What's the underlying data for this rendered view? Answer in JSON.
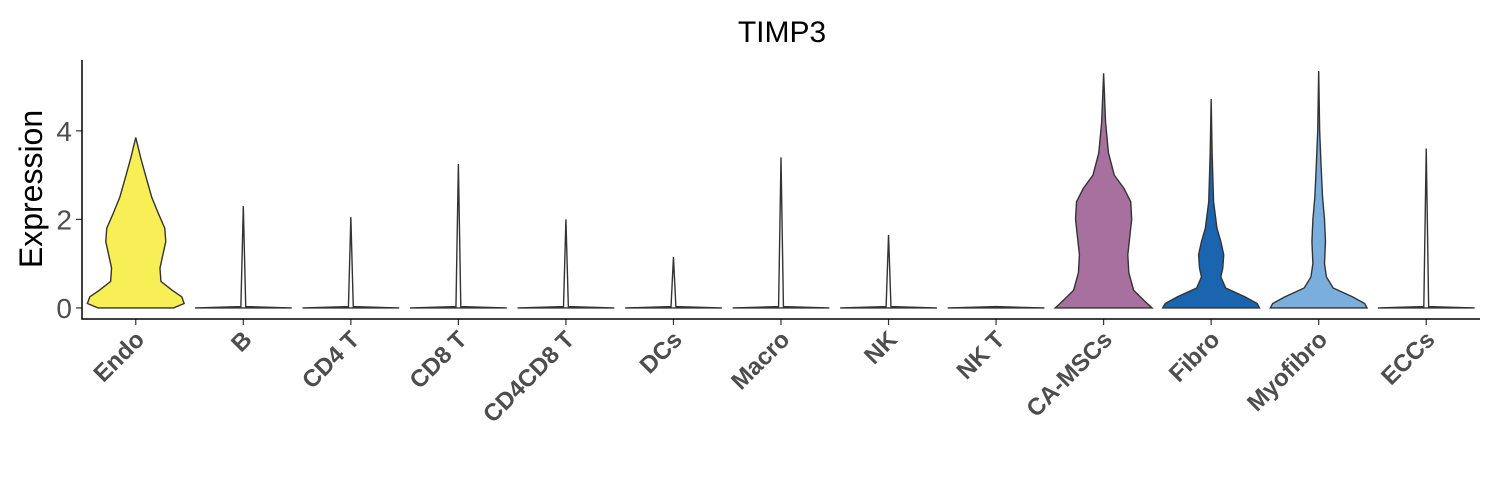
{
  "chart_data": {
    "type": "violin",
    "title": "TIMP3",
    "ylabel": "Expression",
    "xlabel": "",
    "ylim": [
      -0.25,
      5.6
    ],
    "yticks": [
      0,
      2,
      4
    ],
    "categories": [
      "Endo",
      "B",
      "CD4 T",
      "CD8 T",
      "CD4CD8 T",
      "DCs",
      "Macro",
      "NK",
      "NK T",
      "CA-MSCs",
      "Fibro",
      "Myofibro",
      "ECCs"
    ],
    "colors": [
      "#f7ef55",
      "#ffffff",
      "#ffffff",
      "#ffffff",
      "#ffffff",
      "#ffffff",
      "#ffffff",
      "#ffffff",
      "#ffffff",
      "#a8709e",
      "#1a64b0",
      "#7aaedc",
      "#ffffff"
    ],
    "max_values": [
      3.85,
      2.3,
      2.05,
      3.25,
      2.0,
      1.15,
      3.4,
      1.65,
      0.0,
      5.3,
      4.72,
      5.35,
      3.6
    ],
    "density_profiles": [
      [
        [
          0.0,
          0.78
        ],
        [
          0.1,
          1.0
        ],
        [
          0.25,
          0.95
        ],
        [
          0.4,
          0.75
        ],
        [
          0.6,
          0.52
        ],
        [
          0.9,
          0.5
        ],
        [
          1.2,
          0.56
        ],
        [
          1.5,
          0.62
        ],
        [
          1.8,
          0.6
        ],
        [
          2.1,
          0.48
        ],
        [
          2.5,
          0.33
        ],
        [
          3.0,
          0.2
        ],
        [
          3.4,
          0.1
        ],
        [
          3.85,
          0.0
        ]
      ],
      [
        [
          0.0,
          1.0
        ],
        [
          0.03,
          0.05
        ],
        [
          2.3,
          0.0
        ]
      ],
      [
        [
          0.0,
          1.0
        ],
        [
          0.03,
          0.05
        ],
        [
          2.05,
          0.0
        ]
      ],
      [
        [
          0.0,
          1.0
        ],
        [
          0.03,
          0.05
        ],
        [
          3.25,
          0.0
        ]
      ],
      [
        [
          0.0,
          1.0
        ],
        [
          0.03,
          0.05
        ],
        [
          2.0,
          0.0
        ]
      ],
      [
        [
          0.0,
          1.0
        ],
        [
          0.03,
          0.05
        ],
        [
          1.15,
          0.0
        ]
      ],
      [
        [
          0.0,
          1.0
        ],
        [
          0.03,
          0.05
        ],
        [
          3.4,
          0.0
        ]
      ],
      [
        [
          0.0,
          1.0
        ],
        [
          0.03,
          0.05
        ],
        [
          1.65,
          0.0
        ]
      ],
      [
        [
          0.0,
          1.0
        ],
        [
          0.03,
          0.0
        ]
      ],
      [
        [
          0.0,
          1.0
        ],
        [
          0.15,
          0.85
        ],
        [
          0.4,
          0.62
        ],
        [
          0.8,
          0.52
        ],
        [
          1.2,
          0.5
        ],
        [
          1.6,
          0.54
        ],
        [
          2.0,
          0.58
        ],
        [
          2.4,
          0.56
        ],
        [
          2.7,
          0.42
        ],
        [
          3.0,
          0.22
        ],
        [
          3.5,
          0.1
        ],
        [
          4.2,
          0.04
        ],
        [
          5.3,
          0.0
        ]
      ],
      [
        [
          0.0,
          1.0
        ],
        [
          0.1,
          0.95
        ],
        [
          0.25,
          0.7
        ],
        [
          0.45,
          0.3
        ],
        [
          0.7,
          0.2
        ],
        [
          0.9,
          0.24
        ],
        [
          1.2,
          0.26
        ],
        [
          1.5,
          0.2
        ],
        [
          1.8,
          0.12
        ],
        [
          2.4,
          0.05
        ],
        [
          3.5,
          0.02
        ],
        [
          4.72,
          0.0
        ]
      ],
      [
        [
          0.0,
          1.0
        ],
        [
          0.1,
          0.95
        ],
        [
          0.25,
          0.7
        ],
        [
          0.45,
          0.3
        ],
        [
          0.7,
          0.16
        ],
        [
          1.0,
          0.12
        ],
        [
          1.5,
          0.14
        ],
        [
          2.0,
          0.12
        ],
        [
          2.5,
          0.08
        ],
        [
          3.2,
          0.05
        ],
        [
          4.0,
          0.02
        ],
        [
          5.35,
          0.0
        ]
      ],
      [
        [
          0.0,
          1.0
        ],
        [
          0.03,
          0.05
        ],
        [
          3.6,
          0.0
        ]
      ]
    ]
  }
}
